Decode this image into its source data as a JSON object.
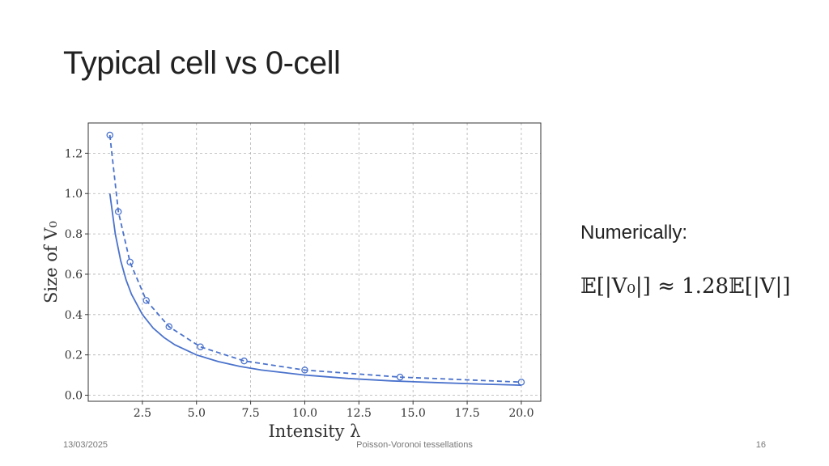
{
  "slide": {
    "title": "Typical cell vs 0-cell",
    "side_label": "Numerically:",
    "formula": "𝔼[|V₀|] ≈ 1.28𝔼[|V|]",
    "footer_date": "13/03/2025",
    "footer_center": "Poisson-Voronoi tessellations",
    "page_number": "16"
  },
  "colors": {
    "series": "#4a72cc",
    "grid": "#b0b0b0",
    "axis": "#333333"
  },
  "chart_data": {
    "type": "line",
    "xlabel": "Intensity λ",
    "ylabel": "Size of V₀",
    "xlim": [
      0,
      20.9
    ],
    "ylim": [
      -0.03,
      1.35
    ],
    "xticks": [
      2.5,
      5.0,
      7.5,
      10.0,
      12.5,
      15.0,
      17.5,
      20.0
    ],
    "xtick_labels": [
      "2.5",
      "5.0",
      "7.5",
      "10.0",
      "12.5",
      "15.0",
      "17.5",
      "20.0"
    ],
    "yticks": [
      0.0,
      0.2,
      0.4,
      0.6,
      0.8,
      1.0,
      1.2
    ],
    "ytick_labels": [
      "0.0",
      "0.2",
      "0.4",
      "0.6",
      "0.8",
      "1.0",
      "1.2"
    ],
    "grid": true,
    "series": [
      {
        "style": "solid",
        "x": [
          1.0,
          1.25,
          1.5,
          1.75,
          2.0,
          2.5,
          3.0,
          3.5,
          4.0,
          5.0,
          6.0,
          7.0,
          8.0,
          10.0,
          12.0,
          14.0,
          16.0,
          18.0,
          20.0
        ],
        "y": [
          1.0,
          0.8,
          0.667,
          0.571,
          0.5,
          0.4,
          0.333,
          0.286,
          0.25,
          0.2,
          0.167,
          0.143,
          0.125,
          0.1,
          0.083,
          0.071,
          0.063,
          0.056,
          0.05
        ]
      },
      {
        "style": "dashed-markers",
        "x": [
          1.0,
          1.39,
          1.93,
          2.68,
          3.73,
          5.18,
          7.2,
          10.0,
          14.4,
          20.0
        ],
        "y": [
          1.29,
          0.91,
          0.66,
          0.47,
          0.34,
          0.24,
          0.17,
          0.125,
          0.09,
          0.065
        ]
      }
    ]
  }
}
